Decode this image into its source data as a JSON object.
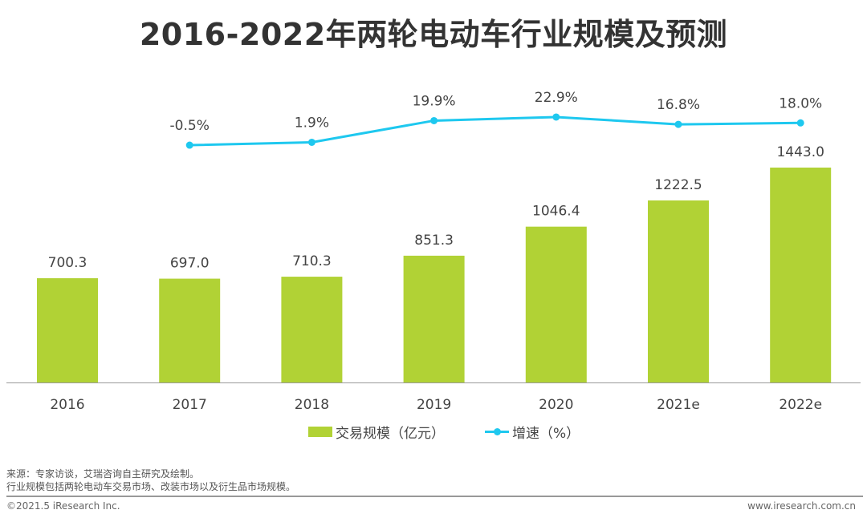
{
  "title": "2016-2022年两轮电动车行业规模及预测",
  "chart_data": {
    "type": "bar+line",
    "categories": [
      "2016",
      "2017",
      "2018",
      "2019",
      "2020",
      "2021e",
      "2022e"
    ],
    "series": [
      {
        "name": "交易规模（亿元）",
        "type": "bar",
        "color": "#b1d235",
        "values": [
          700.3,
          697.0,
          710.3,
          851.3,
          1046.4,
          1222.5,
          1443.0
        ],
        "labels": [
          "700.3",
          "697.0",
          "710.3",
          "851.3",
          "1046.4",
          "1222.5",
          "1443.0"
        ]
      },
      {
        "name": "增速（%）",
        "type": "line",
        "color": "#1ec8ef",
        "values": [
          null,
          -0.5,
          1.9,
          19.9,
          22.9,
          16.8,
          18.0
        ],
        "labels": [
          "",
          "-0.5%",
          "1.9%",
          "19.9%",
          "22.9%",
          "16.8%",
          "18.0%"
        ]
      }
    ],
    "legend_position": "bottom",
    "grid": false
  },
  "notes": [
    "来源：专家访谈，艾瑞咨询自主研究及绘制。",
    "行业规模包括两轮电动车交易市场、改装市场以及衍生品市场规模。"
  ],
  "footer": {
    "copyright": "©2021.5 iResearch Inc.",
    "website": "www.iresearch.com.cn"
  }
}
